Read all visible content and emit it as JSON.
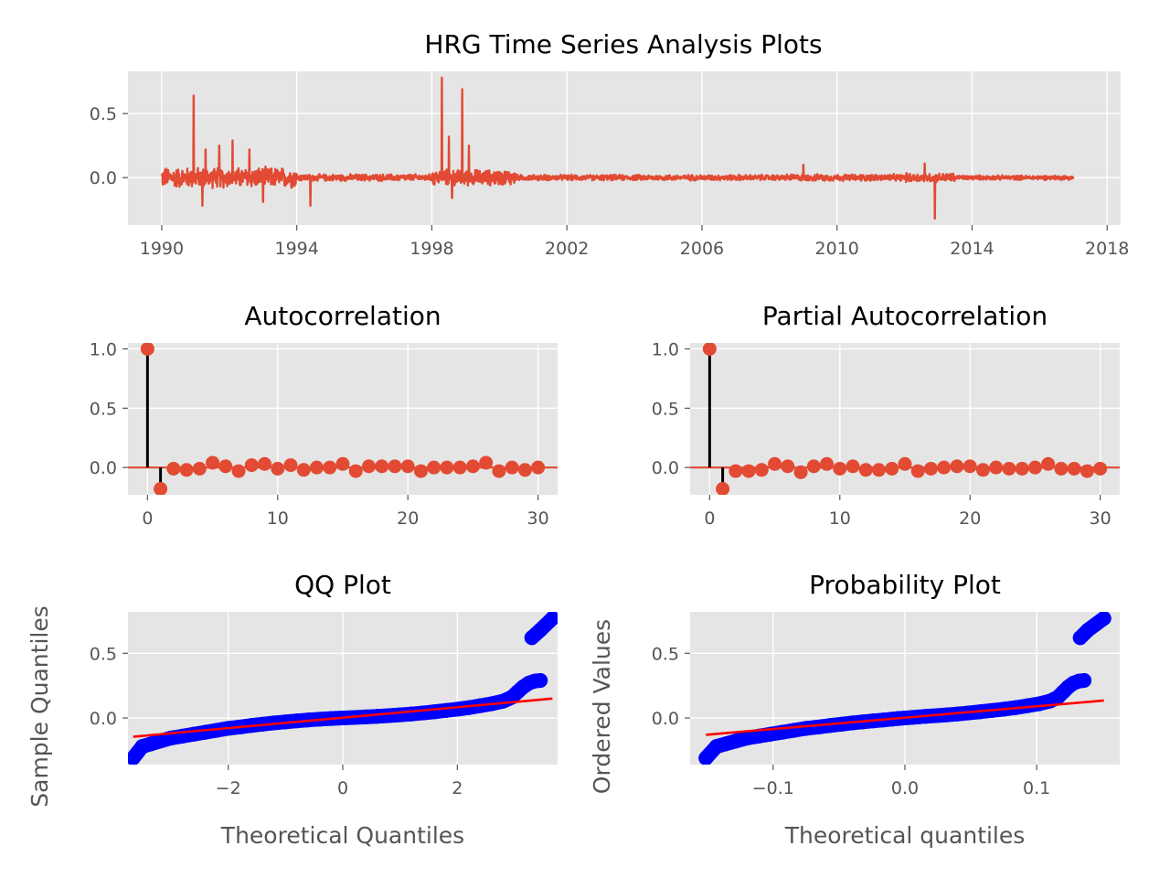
{
  "figure": {
    "title": "HRG Time Series Analysis Plots"
  },
  "chart_data": [
    {
      "id": "ts",
      "type": "line",
      "title": "",
      "xlabel": "",
      "ylabel": "",
      "x_range": [
        1989.0,
        2018.4
      ],
      "y_range": [
        -0.37,
        0.83
      ],
      "x_ticks": [
        1990,
        1994,
        1998,
        2002,
        2006,
        2010,
        2014,
        2018
      ],
      "x_tick_labels": [
        "1990",
        "1994",
        "1998",
        "2002",
        "2006",
        "2010",
        "2014",
        "2018"
      ],
      "y_ticks": [
        0.0,
        0.5
      ],
      "y_tick_labels": [
        "0.0",
        "0.5"
      ],
      "series_color": "#E24A33",
      "x_start": 1990.0,
      "x_end": 2017.0,
      "noise_profile": [
        {
          "from": 1990.0,
          "to": 1994.0,
          "amp": 0.09
        },
        {
          "from": 1994.0,
          "to": 1998.0,
          "amp": 0.03
        },
        {
          "from": 1998.0,
          "to": 2000.5,
          "amp": 0.07
        },
        {
          "from": 2000.5,
          "to": 2008.5,
          "amp": 0.025
        },
        {
          "from": 2008.5,
          "to": 2012.0,
          "amp": 0.03
        },
        {
          "from": 2012.0,
          "to": 2013.5,
          "amp": 0.04
        },
        {
          "from": 2013.5,
          "to": 2017.0,
          "amp": 0.02
        }
      ],
      "spikes": [
        {
          "x": 1990.95,
          "y": 0.64
        },
        {
          "x": 1991.3,
          "y": 0.22
        },
        {
          "x": 1991.7,
          "y": 0.25
        },
        {
          "x": 1992.1,
          "y": 0.29
        },
        {
          "x": 1992.6,
          "y": 0.22
        },
        {
          "x": 1991.2,
          "y": -0.22
        },
        {
          "x": 1993.0,
          "y": -0.19
        },
        {
          "x": 1994.4,
          "y": -0.22
        },
        {
          "x": 1998.3,
          "y": 0.78
        },
        {
          "x": 1998.5,
          "y": 0.32
        },
        {
          "x": 1998.9,
          "y": 0.69
        },
        {
          "x": 1999.1,
          "y": 0.25
        },
        {
          "x": 1998.6,
          "y": -0.16
        },
        {
          "x": 2009.0,
          "y": 0.1
        },
        {
          "x": 2012.9,
          "y": -0.32
        },
        {
          "x": 2012.6,
          "y": 0.11
        }
      ]
    },
    {
      "id": "acf",
      "type": "scatter",
      "title": "Autocorrelation",
      "xlabel": "",
      "ylabel": "",
      "x_range": [
        -1.5,
        31.5
      ],
      "y_range": [
        -0.23,
        1.05
      ],
      "x_ticks": [
        0,
        10,
        20,
        30
      ],
      "x_tick_labels": [
        "0",
        "10",
        "20",
        "30"
      ],
      "y_ticks": [
        0.0,
        0.5,
        1.0
      ],
      "y_tick_labels": [
        "0.0",
        "0.5",
        "1.0"
      ],
      "lags": [
        0,
        1,
        2,
        3,
        4,
        5,
        6,
        7,
        8,
        9,
        10,
        11,
        12,
        13,
        14,
        15,
        16,
        17,
        18,
        19,
        20,
        21,
        22,
        23,
        24,
        25,
        26,
        27,
        28,
        29,
        30
      ],
      "values": [
        1.0,
        -0.18,
        -0.01,
        -0.02,
        -0.01,
        0.04,
        0.01,
        -0.03,
        0.02,
        0.03,
        -0.01,
        0.02,
        -0.02,
        0.0,
        0.0,
        0.03,
        -0.03,
        0.01,
        0.01,
        0.01,
        0.01,
        -0.03,
        0.0,
        0.0,
        0.0,
        0.01,
        0.04,
        -0.03,
        0.0,
        -0.02,
        0.0
      ],
      "marker_color": "#E24A33"
    },
    {
      "id": "pacf",
      "type": "scatter",
      "title": "Partial Autocorrelation",
      "xlabel": "",
      "ylabel": "",
      "x_range": [
        -1.5,
        31.5
      ],
      "y_range": [
        -0.23,
        1.05
      ],
      "x_ticks": [
        0,
        10,
        20,
        30
      ],
      "x_tick_labels": [
        "0",
        "10",
        "20",
        "30"
      ],
      "y_ticks": [
        0.0,
        0.5,
        1.0
      ],
      "y_tick_labels": [
        "0.0",
        "0.5",
        "1.0"
      ],
      "lags": [
        0,
        1,
        2,
        3,
        4,
        5,
        6,
        7,
        8,
        9,
        10,
        11,
        12,
        13,
        14,
        15,
        16,
        17,
        18,
        19,
        20,
        21,
        22,
        23,
        24,
        25,
        26,
        27,
        28,
        29,
        30
      ],
      "values": [
        1.0,
        -0.18,
        -0.03,
        -0.03,
        -0.02,
        0.03,
        0.01,
        -0.04,
        0.01,
        0.03,
        -0.01,
        0.01,
        -0.02,
        -0.02,
        -0.01,
        0.03,
        -0.03,
        -0.01,
        0.0,
        0.01,
        0.01,
        -0.02,
        0.0,
        -0.01,
        -0.01,
        0.0,
        0.03,
        -0.01,
        -0.01,
        -0.03,
        -0.01
      ],
      "marker_color": "#E24A33"
    },
    {
      "id": "qq",
      "type": "scatter",
      "title": "QQ Plot",
      "xlabel": "Theoretical Quantiles",
      "ylabel": "Sample Quantiles",
      "x_range": [
        -3.75,
        3.75
      ],
      "y_range": [
        -0.36,
        0.82
      ],
      "x_ticks": [
        -2,
        0,
        2
      ],
      "x_tick_labels": [
        "−2",
        "0",
        "2"
      ],
      "y_ticks": [
        0.0,
        0.5
      ],
      "y_tick_labels": [
        "0.0",
        "0.5"
      ],
      "points": [
        [
          -3.66,
          -0.31
        ],
        [
          -3.5,
          -0.22
        ],
        [
          -3.35,
          -0.2
        ],
        [
          -3.2,
          -0.18
        ],
        [
          -3.0,
          -0.155
        ],
        [
          -2.8,
          -0.14
        ],
        [
          -2.6,
          -0.125
        ],
        [
          -2.4,
          -0.11
        ],
        [
          -2.2,
          -0.095
        ],
        [
          -2.0,
          -0.08
        ],
        [
          -1.8,
          -0.07
        ],
        [
          -1.6,
          -0.058
        ],
        [
          -1.4,
          -0.048
        ],
        [
          -1.2,
          -0.038
        ],
        [
          -1.0,
          -0.03
        ],
        [
          -0.8,
          -0.022
        ],
        [
          -0.6,
          -0.015
        ],
        [
          -0.4,
          -0.009
        ],
        [
          -0.2,
          -0.004
        ],
        [
          0.0,
          0.0
        ],
        [
          0.2,
          0.004
        ],
        [
          0.4,
          0.008
        ],
        [
          0.6,
          0.013
        ],
        [
          0.8,
          0.018
        ],
        [
          1.0,
          0.024
        ],
        [
          1.2,
          0.031
        ],
        [
          1.4,
          0.039
        ],
        [
          1.6,
          0.048
        ],
        [
          1.8,
          0.058
        ],
        [
          2.0,
          0.068
        ],
        [
          2.2,
          0.08
        ],
        [
          2.4,
          0.095
        ],
        [
          2.6,
          0.11
        ],
        [
          2.8,
          0.13
        ],
        [
          2.95,
          0.16
        ],
        [
          3.05,
          0.2
        ],
        [
          3.15,
          0.24
        ],
        [
          3.25,
          0.27
        ],
        [
          3.35,
          0.285
        ],
        [
          3.45,
          0.29
        ],
        [
          3.3,
          0.62
        ],
        [
          3.45,
          0.68
        ],
        [
          3.66,
          0.77
        ]
      ],
      "line": [
        [
          -3.66,
          -0.145
        ],
        [
          3.66,
          0.15
        ]
      ],
      "marker_color": "#0000FF",
      "line_color": "#FF0000"
    },
    {
      "id": "prob",
      "type": "scatter",
      "title": "Probability Plot",
      "xlabel": "Theoretical quantiles",
      "ylabel": "Ordered Values",
      "x_range": [
        -0.163,
        0.163
      ],
      "y_range": [
        -0.36,
        0.82
      ],
      "x_ticks": [
        -0.1,
        0.0,
        0.1
      ],
      "x_tick_labels": [
        "−0.1",
        "0.0",
        "0.1"
      ],
      "y_ticks": [
        0.0,
        0.5
      ],
      "y_tick_labels": [
        "0.0",
        "0.5"
      ],
      "points": [
        [
          -0.151,
          -0.31
        ],
        [
          -0.143,
          -0.22
        ],
        [
          -0.136,
          -0.2
        ],
        [
          -0.129,
          -0.18
        ],
        [
          -0.12,
          -0.155
        ],
        [
          -0.111,
          -0.14
        ],
        [
          -0.102,
          -0.125
        ],
        [
          -0.093,
          -0.11
        ],
        [
          -0.084,
          -0.095
        ],
        [
          -0.075,
          -0.08
        ],
        [
          -0.066,
          -0.07
        ],
        [
          -0.057,
          -0.058
        ],
        [
          -0.048,
          -0.048
        ],
        [
          -0.04,
          -0.038
        ],
        [
          -0.032,
          -0.03
        ],
        [
          -0.024,
          -0.022
        ],
        [
          -0.016,
          -0.015
        ],
        [
          -0.01,
          -0.009
        ],
        [
          -0.005,
          -0.004
        ],
        [
          0.0,
          0.0
        ],
        [
          0.005,
          0.004
        ],
        [
          0.01,
          0.008
        ],
        [
          0.016,
          0.013
        ],
        [
          0.024,
          0.018
        ],
        [
          0.032,
          0.024
        ],
        [
          0.04,
          0.031
        ],
        [
          0.048,
          0.039
        ],
        [
          0.057,
          0.048
        ],
        [
          0.066,
          0.058
        ],
        [
          0.075,
          0.068
        ],
        [
          0.084,
          0.08
        ],
        [
          0.093,
          0.095
        ],
        [
          0.102,
          0.11
        ],
        [
          0.11,
          0.13
        ],
        [
          0.116,
          0.16
        ],
        [
          0.12,
          0.2
        ],
        [
          0.124,
          0.24
        ],
        [
          0.128,
          0.27
        ],
        [
          0.132,
          0.285
        ],
        [
          0.136,
          0.29
        ],
        [
          0.133,
          0.62
        ],
        [
          0.139,
          0.68
        ],
        [
          0.151,
          0.77
        ]
      ],
      "line": [
        [
          -0.151,
          -0.13
        ],
        [
          0.151,
          0.135
        ]
      ],
      "marker_color": "#0000FF",
      "line_color": "#FF0000"
    }
  ]
}
